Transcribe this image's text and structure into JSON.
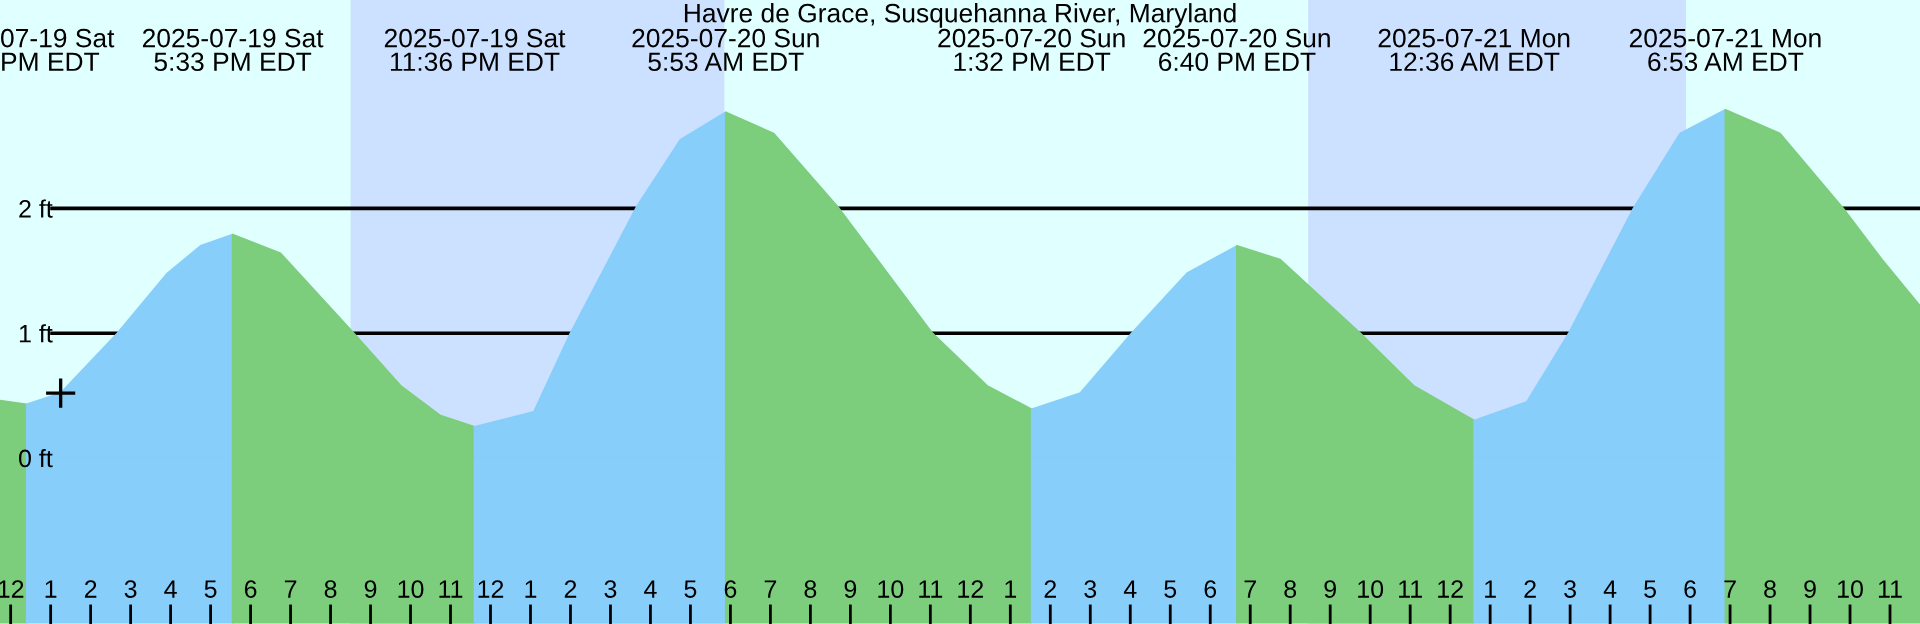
{
  "chart_data": {
    "type": "area",
    "title": "Havre de Grace, Susquehanna River, Maryland",
    "annotations": [
      "07-19 Sat\nPM EDT",
      "2025-07-19 Sat\n5:33 PM EDT",
      "2025-07-19 Sat\n11:36 PM EDT",
      "2025-07-20 Sun\n5:53 AM EDT",
      "2025-07-20 Sun\n1:32 PM EDT",
      "2025-07-20 Sun\n6:40 PM EDT",
      "2025-07-21 Mon\n12:36 AM EDT",
      "2025-07-21 Mon\n6:53 AM EDT"
    ],
    "series": [
      {
        "color": "#7ccd7c",
        "x": [
          "2025-07-19T11:44",
          "2025-07-19T12:24"
        ],
        "values": [
          0.46,
          0.43
        ]
      },
      {
        "color": "#87cefa",
        "x": [
          "2025-07-19T12:24",
          "2025-07-19T13:15",
          "2025-07-19T14:40",
          "2025-07-19T15:55",
          "2025-07-19T16:45",
          "2025-07-19T17:33"
        ],
        "values": [
          0.43,
          0.52,
          1.0,
          1.48,
          1.7,
          1.79
        ]
      },
      {
        "color": "#7ccd7c",
        "x": [
          "2025-07-19T17:33",
          "2025-07-19T18:45",
          "2025-07-19T20:35",
          "2025-07-19T21:45",
          "2025-07-19T22:45",
          "2025-07-19T23:36"
        ],
        "values": [
          1.79,
          1.64,
          1.0,
          0.58,
          0.34,
          0.25
        ]
      },
      {
        "color": "#87cefa",
        "x": [
          "2025-07-19T23:36",
          "2025-07-20T01:05",
          "2025-07-20T02:00",
          "2025-07-20T03:40",
          "2025-07-20T04:45",
          "2025-07-20T05:53"
        ],
        "values": [
          0.25,
          0.37,
          1.0,
          2.02,
          2.55,
          2.77
        ]
      },
      {
        "color": "#7ccd7c",
        "x": [
          "2025-07-20T05:53",
          "2025-07-20T07:05",
          "2025-07-20T08:43",
          "2025-07-20T11:03",
          "2025-07-20T12:25",
          "2025-07-20T13:32"
        ],
        "values": [
          2.77,
          2.6,
          2.0,
          1.0,
          0.58,
          0.39
        ]
      },
      {
        "color": "#87cefa",
        "x": [
          "2025-07-20T13:32",
          "2025-07-20T14:45",
          "2025-07-20T16:02",
          "2025-07-20T17:25",
          "2025-07-20T18:40"
        ],
        "values": [
          0.39,
          0.52,
          1.0,
          1.48,
          1.7
        ]
      },
      {
        "color": "#7ccd7c",
        "x": [
          "2025-07-20T18:40",
          "2025-07-20T19:45",
          "2025-07-20T21:45",
          "2025-07-20T23:05",
          "2025-07-21T00:36"
        ],
        "values": [
          1.7,
          1.59,
          1.0,
          0.58,
          0.3
        ]
      },
      {
        "color": "#87cefa",
        "x": [
          "2025-07-21T00:36",
          "2025-07-21T01:55",
          "2025-07-21T02:58",
          "2025-07-21T04:35",
          "2025-07-21T05:45",
          "2025-07-21T06:53"
        ],
        "values": [
          0.3,
          0.45,
          1.0,
          2.0,
          2.6,
          2.79
        ]
      },
      {
        "color": "#7ccd7c",
        "x": [
          "2025-07-21T06:53",
          "2025-07-21T08:15",
          "2025-07-21T09:50",
          "2025-07-21T10:48",
          "2025-07-21T11:45"
        ],
        "values": [
          2.79,
          2.6,
          2.0,
          1.59,
          1.22
        ]
      },
      {
        "color": "#7ccd7c",
        "x": [
          "2025-07-19T11:44",
          "2025-07-19T12:24"
        ],
        "values": [
          -1.32,
          -1.32
        ]
      },
      {
        "color": "#87cefa",
        "x": [
          "2025-07-19T12:24",
          "2025-07-19T17:33"
        ],
        "values": [
          -1.32,
          -1.32
        ]
      },
      {
        "color": "#7ccd7c",
        "x": [
          "2025-07-19T17:33",
          "2025-07-19T23:36"
        ],
        "values": [
          -1.32,
          -1.32
        ]
      },
      {
        "color": "#87cefa",
        "x": [
          "2025-07-19T23:36",
          "2025-07-20T05:53"
        ],
        "values": [
          -1.32,
          -1.32
        ]
      },
      {
        "color": "#7ccd7c",
        "x": [
          "2025-07-20T05:53",
          "2025-07-20T13:32"
        ],
        "values": [
          -1.32,
          -1.32
        ]
      },
      {
        "color": "#87cefa",
        "x": [
          "2025-07-20T13:32",
          "2025-07-20T18:40"
        ],
        "values": [
          -1.32,
          -1.32
        ]
      },
      {
        "color": "#7ccd7c",
        "x": [
          "2025-07-20T18:40",
          "2025-07-21T00:36"
        ],
        "values": [
          -1.32,
          -1.32
        ]
      },
      {
        "color": "#87cefa",
        "x": [
          "2025-07-21T00:36",
          "2025-07-21T06:53"
        ],
        "values": [
          -1.32,
          -1.32
        ]
      },
      {
        "color": "#7ccd7c",
        "x": [
          "2025-07-21T06:53",
          "2025-07-21T11:45"
        ],
        "values": [
          -1.32,
          -1.32
        ]
      },
      {
        "type": "scatter",
        "color": "#000000",
        "marker": "cross",
        "x": [
          "2025-07-19T13:15"
        ],
        "values": [
          0.52
        ]
      }
    ],
    "bands": [
      {
        "axis": "x",
        "from": "2025-07-19T20:30",
        "to": "2025-07-20T05:51",
        "color": "#cce0ff"
      },
      {
        "axis": "x",
        "from": "2025-07-20T20:27",
        "to": "2025-07-21T05:54",
        "color": "#cce0ff"
      }
    ],
    "xlim": [
      "2025-07-19T11:44",
      "2025-07-21T11:45"
    ],
    "ylim": [
      -1.33,
      3.67
    ],
    "xticks": [
      {
        "value": "2025-07-19T12:00",
        "label": "12"
      },
      {
        "value": "2025-07-19T13:00",
        "label": "1"
      },
      {
        "value": "2025-07-19T14:00",
        "label": "2"
      },
      {
        "value": "2025-07-19T15:00",
        "label": "3"
      },
      {
        "value": "2025-07-19T16:00",
        "label": "4"
      },
      {
        "value": "2025-07-19T17:00",
        "label": "5"
      },
      {
        "value": "2025-07-19T18:00",
        "label": "6"
      },
      {
        "value": "2025-07-19T19:00",
        "label": "7"
      },
      {
        "value": "2025-07-19T20:00",
        "label": "8"
      },
      {
        "value": "2025-07-19T21:00",
        "label": "9"
      },
      {
        "value": "2025-07-19T22:00",
        "label": "10"
      },
      {
        "value": "2025-07-19T23:00",
        "label": "11"
      },
      {
        "value": "2025-07-20T00:00",
        "label": "12"
      },
      {
        "value": "2025-07-20T01:00",
        "label": "1"
      },
      {
        "value": "2025-07-20T02:00",
        "label": "2"
      },
      {
        "value": "2025-07-20T03:00",
        "label": "3"
      },
      {
        "value": "2025-07-20T04:00",
        "label": "4"
      },
      {
        "value": "2025-07-20T05:00",
        "label": "5"
      },
      {
        "value": "2025-07-20T06:00",
        "label": "6"
      },
      {
        "value": "2025-07-20T07:00",
        "label": "7"
      },
      {
        "value": "2025-07-20T08:00",
        "label": "8"
      },
      {
        "value": "2025-07-20T09:00",
        "label": "9"
      },
      {
        "value": "2025-07-20T10:00",
        "label": "10"
      },
      {
        "value": "2025-07-20T11:00",
        "label": "11"
      },
      {
        "value": "2025-07-20T12:00",
        "label": "12"
      },
      {
        "value": "2025-07-20T13:00",
        "label": "1"
      },
      {
        "value": "2025-07-20T14:00",
        "label": "2"
      },
      {
        "value": "2025-07-20T15:00",
        "label": "3"
      },
      {
        "value": "2025-07-20T16:00",
        "label": "4"
      },
      {
        "value": "2025-07-20T17:00",
        "label": "5"
      },
      {
        "value": "2025-07-20T18:00",
        "label": "6"
      },
      {
        "value": "2025-07-20T19:00",
        "label": "7"
      },
      {
        "value": "2025-07-20T20:00",
        "label": "8"
      },
      {
        "value": "2025-07-20T21:00",
        "label": "9"
      },
      {
        "value": "2025-07-20T22:00",
        "label": "10"
      },
      {
        "value": "2025-07-20T23:00",
        "label": "11"
      },
      {
        "value": "2025-07-21T00:00",
        "label": "12"
      },
      {
        "value": "2025-07-21T01:00",
        "label": "1"
      },
      {
        "value": "2025-07-21T02:00",
        "label": "2"
      },
      {
        "value": "2025-07-21T03:00",
        "label": "3"
      },
      {
        "value": "2025-07-21T04:00",
        "label": "4"
      },
      {
        "value": "2025-07-21T05:00",
        "label": "5"
      },
      {
        "value": "2025-07-21T06:00",
        "label": "6"
      },
      {
        "value": "2025-07-21T07:00",
        "label": "7"
      },
      {
        "value": "2025-07-21T08:00",
        "label": "8"
      },
      {
        "value": "2025-07-21T09:00",
        "label": "9"
      },
      {
        "value": "2025-07-21T10:00",
        "label": "10"
      },
      {
        "value": "2025-07-21T11:00",
        "label": "11"
      }
    ],
    "yticks": [
      {
        "value": 0,
        "label": "0 ft"
      },
      {
        "value": 1,
        "label": "1 ft"
      },
      {
        "value": 2,
        "label": "2 ft"
      }
    ],
    "grid": "y"
  }
}
